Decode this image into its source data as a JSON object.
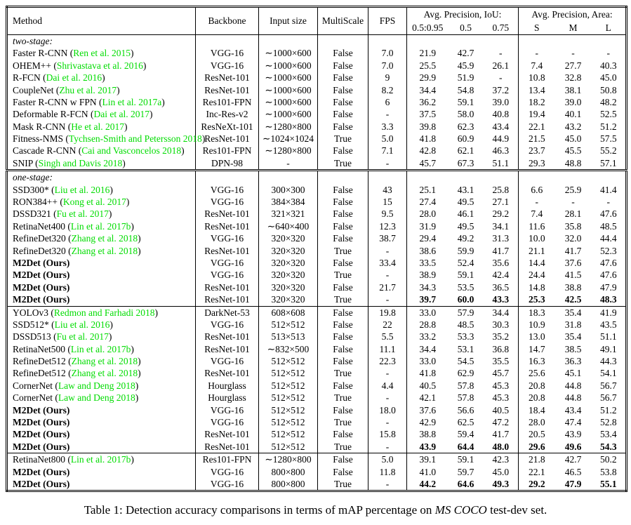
{
  "colors": {
    "citation": "#00DC00",
    "text": "#000000",
    "background": "#ffffff"
  },
  "header": {
    "method": "Method",
    "backbone": "Backbone",
    "input_size": "Input size",
    "multiscale": "MultiScale",
    "fps": "FPS",
    "group_iou": "Avg. Precision, IoU:",
    "group_area": "Avg. Precision, Area:",
    "sub_iou": [
      "0.5:0.95",
      "0.5",
      "0.75"
    ],
    "sub_area": [
      "S",
      "M",
      "L"
    ]
  },
  "table": {
    "rows": [
      {
        "type": "section",
        "label": "two-stage:"
      },
      {
        "type": "data",
        "method": "Faster R-CNN",
        "cite": "Ren et al. 2015",
        "backbone": "VGG-16",
        "input": "∼1000×600",
        "multiscale": "False",
        "fps": "7.0",
        "vals": [
          "21.9",
          "42.7",
          "-",
          "-",
          "-",
          "-"
        ]
      },
      {
        "type": "data",
        "method": "OHEM++",
        "cite": "Shrivastava et al. 2016",
        "backbone": "VGG-16",
        "input": "∼1000×600",
        "multiscale": "False",
        "fps": "7.0",
        "vals": [
          "25.5",
          "45.9",
          "26.1",
          "7.4",
          "27.7",
          "40.3"
        ]
      },
      {
        "type": "data",
        "method": "R-FCN",
        "cite": "Dai et al. 2016",
        "backbone": "ResNet-101",
        "input": "∼1000×600",
        "multiscale": "False",
        "fps": "9",
        "vals": [
          "29.9",
          "51.9",
          "-",
          "10.8",
          "32.8",
          "45.0"
        ]
      },
      {
        "type": "data",
        "method": "CoupleNet",
        "cite": "Zhu et al. 2017",
        "backbone": "ResNet-101",
        "input": "∼1000×600",
        "multiscale": "False",
        "fps": "8.2",
        "vals": [
          "34.4",
          "54.8",
          "37.2",
          "13.4",
          "38.1",
          "50.8"
        ]
      },
      {
        "type": "data",
        "method": "Faster R-CNN w FPN",
        "cite": "Lin et al. 2017a",
        "backbone": "Res101-FPN",
        "input": "∼1000×600",
        "multiscale": "False",
        "fps": "6",
        "vals": [
          "36.2",
          "59.1",
          "39.0",
          "18.2",
          "39.0",
          "48.2"
        ]
      },
      {
        "type": "data",
        "method": "Deformable R-FCN",
        "cite": "Dai et al. 2017",
        "backbone": "Inc-Res-v2",
        "input": "∼1000×600",
        "multiscale": "False",
        "fps": "-",
        "vals": [
          "37.5",
          "58.0",
          "40.8",
          "19.4",
          "40.1",
          "52.5"
        ]
      },
      {
        "type": "data",
        "method": "Mask R-CNN",
        "cite": "He et al. 2017",
        "backbone": "ResNeXt-101",
        "input": "∼1280×800",
        "multiscale": "False",
        "fps": "3.3",
        "vals": [
          "39.8",
          "62.3",
          "43.4",
          "22.1",
          "43.2",
          "51.2"
        ]
      },
      {
        "type": "data",
        "method": "Fitness-NMS",
        "cite": "Tychsen-Smith and Petersson 2018",
        "backbone": "ResNet-101",
        "input": "∼1024×1024",
        "multiscale": "True",
        "fps": "5.0",
        "vals": [
          "41.8",
          "60.9",
          "44.9",
          "21.5",
          "45.0",
          "57.5"
        ]
      },
      {
        "type": "data",
        "method": "Cascade R-CNN",
        "cite": "Cai and Vasconcelos 2018",
        "backbone": "Res101-FPN",
        "input": "∼1280×800",
        "multiscale": "False",
        "fps": "7.1",
        "vals": [
          "42.8",
          "62.1",
          "46.3",
          "23.7",
          "45.5",
          "55.2"
        ]
      },
      {
        "type": "data",
        "method": "SNIP",
        "cite": "Singh and Davis 2018",
        "backbone": "DPN-98",
        "input": "-",
        "multiscale": "True",
        "fps": "-",
        "vals": [
          "45.7",
          "67.3",
          "51.1",
          "29.3",
          "48.8",
          "57.1"
        ]
      },
      {
        "type": "section",
        "label": "one-stage:",
        "sep": "double"
      },
      {
        "type": "data",
        "method": "SSD300*",
        "cite": "Liu et al. 2016",
        "backbone": "VGG-16",
        "input": "300×300",
        "multiscale": "False",
        "fps": "43",
        "vals": [
          "25.1",
          "43.1",
          "25.8",
          "6.6",
          "25.9",
          "41.4"
        ]
      },
      {
        "type": "data",
        "method": "RON384++",
        "cite": "Kong et al. 2017",
        "backbone": "VGG-16",
        "input": "384×384",
        "multiscale": "False",
        "fps": "15",
        "vals": [
          "27.4",
          "49.5",
          "27.1",
          "-",
          "-",
          "-"
        ]
      },
      {
        "type": "data",
        "method": "DSSD321",
        "cite": "Fu et al. 2017",
        "backbone": "ResNet-101",
        "input": "321×321",
        "multiscale": "False",
        "fps": "9.5",
        "vals": [
          "28.0",
          "46.1",
          "29.2",
          "7.4",
          "28.1",
          "47.6"
        ]
      },
      {
        "type": "data",
        "method": "RetinaNet400",
        "cite": "Lin et al. 2017b",
        "backbone": "ResNet-101",
        "input": "∼640×400",
        "multiscale": "False",
        "fps": "12.3",
        "vals": [
          "31.9",
          "49.5",
          "34.1",
          "11.6",
          "35.8",
          "48.5"
        ]
      },
      {
        "type": "data",
        "method": "RefineDet320",
        "cite": "Zhang et al. 2018",
        "backbone": "VGG-16",
        "input": "320×320",
        "multiscale": "False",
        "fps": "38.7",
        "vals": [
          "29.4",
          "49.2",
          "31.3",
          "10.0",
          "32.0",
          "44.4"
        ]
      },
      {
        "type": "data",
        "method": "RefineDet320",
        "cite": "Zhang et al. 2018",
        "backbone": "ResNet-101",
        "input": "320×320",
        "multiscale": "True",
        "fps": "-",
        "vals": [
          "38.6",
          "59.9",
          "41.7",
          "21.1",
          "41.7",
          "52.3"
        ]
      },
      {
        "type": "data",
        "method": "M2Det (Ours)",
        "boldMethod": true,
        "backbone": "VGG-16",
        "input": "320×320",
        "multiscale": "False",
        "fps": "33.4",
        "vals": [
          "33.5",
          "52.4",
          "35.6",
          "14.4",
          "37.6",
          "47.6"
        ]
      },
      {
        "type": "data",
        "method": "M2Det (Ours)",
        "boldMethod": true,
        "backbone": "VGG-16",
        "input": "320×320",
        "multiscale": "True",
        "fps": "-",
        "vals": [
          "38.9",
          "59.1",
          "42.4",
          "24.4",
          "41.5",
          "47.6"
        ]
      },
      {
        "type": "data",
        "method": "M2Det (Ours)",
        "boldMethod": true,
        "backbone": "ResNet-101",
        "input": "320×320",
        "multiscale": "False",
        "fps": "21.7",
        "vals": [
          "34.3",
          "53.5",
          "36.5",
          "14.8",
          "38.8",
          "47.9"
        ]
      },
      {
        "type": "data",
        "method": "M2Det (Ours)",
        "boldMethod": true,
        "boldVals": true,
        "backbone": "ResNet-101",
        "input": "320×320",
        "multiscale": "True",
        "fps": "-",
        "vals": [
          "39.7",
          "60.0",
          "43.3",
          "25.3",
          "42.5",
          "48.3"
        ]
      },
      {
        "type": "data",
        "method": "YOLOv3",
        "cite": "Redmon and Farhadi 2018",
        "backbone": "DarkNet-53",
        "input": "608×608",
        "multiscale": "False",
        "fps": "19.8",
        "vals": [
          "33.0",
          "57.9",
          "34.4",
          "18.3",
          "35.4",
          "41.9"
        ],
        "sep": "single"
      },
      {
        "type": "data",
        "method": "SSD512*",
        "cite": "Liu et al. 2016",
        "backbone": "VGG-16",
        "input": "512×512",
        "multiscale": "False",
        "fps": "22",
        "vals": [
          "28.8",
          "48.5",
          "30.3",
          "10.9",
          "31.8",
          "43.5"
        ]
      },
      {
        "type": "data",
        "method": "DSSD513",
        "cite": "Fu et al. 2017",
        "backbone": "ResNet-101",
        "input": "513×513",
        "multiscale": "False",
        "fps": "5.5",
        "vals": [
          "33.2",
          "53.3",
          "35.2",
          "13.0",
          "35.4",
          "51.1"
        ]
      },
      {
        "type": "data",
        "method": "RetinaNet500",
        "cite": "Lin et al. 2017b",
        "backbone": "ResNet-101",
        "input": "∼832×500",
        "multiscale": "False",
        "fps": "11.1",
        "vals": [
          "34.4",
          "53.1",
          "36.8",
          "14.7",
          "38.5",
          "49.1"
        ]
      },
      {
        "type": "data",
        "method": "RefineDet512",
        "cite": "Zhang et al. 2018",
        "backbone": "VGG-16",
        "input": "512×512",
        "multiscale": "False",
        "fps": "22.3",
        "vals": [
          "33.0",
          "54.5",
          "35.5",
          "16.3",
          "36.3",
          "44.3"
        ]
      },
      {
        "type": "data",
        "method": "RefineDet512",
        "cite": "Zhang et al. 2018",
        "backbone": "ResNet-101",
        "input": "512×512",
        "multiscale": "True",
        "fps": "-",
        "vals": [
          "41.8",
          "62.9",
          "45.7",
          "25.6",
          "45.1",
          "54.1"
        ]
      },
      {
        "type": "data",
        "method": "CornerNet",
        "cite": "Law and Deng 2018",
        "backbone": "Hourglass",
        "input": "512×512",
        "multiscale": "False",
        "fps": "4.4",
        "vals": [
          "40.5",
          "57.8",
          "45.3",
          "20.8",
          "44.8",
          "56.7"
        ]
      },
      {
        "type": "data",
        "method": "CornerNet",
        "cite": "Law and Deng 2018",
        "backbone": "Hourglass",
        "input": "512×512",
        "multiscale": "True",
        "fps": "-",
        "vals": [
          "42.1",
          "57.8",
          "45.3",
          "20.8",
          "44.8",
          "56.7"
        ]
      },
      {
        "type": "data",
        "method": "M2Det (Ours)",
        "boldMethod": true,
        "backbone": "VGG-16",
        "input": "512×512",
        "multiscale": "False",
        "fps": "18.0",
        "vals": [
          "37.6",
          "56.6",
          "40.5",
          "18.4",
          "43.4",
          "51.2"
        ]
      },
      {
        "type": "data",
        "method": "M2Det (Ours)",
        "boldMethod": true,
        "backbone": "VGG-16",
        "input": "512×512",
        "multiscale": "True",
        "fps": "-",
        "vals": [
          "42.9",
          "62.5",
          "47.2",
          "28.0",
          "47.4",
          "52.8"
        ]
      },
      {
        "type": "data",
        "method": "M2Det (Ours)",
        "boldMethod": true,
        "backbone": "ResNet-101",
        "input": "512×512",
        "multiscale": "False",
        "fps": "15.8",
        "vals": [
          "38.8",
          "59.4",
          "41.7",
          "20.5",
          "43.9",
          "53.4"
        ]
      },
      {
        "type": "data",
        "method": "M2Det (Ours)",
        "boldMethod": true,
        "boldVals": true,
        "backbone": "ResNet-101",
        "input": "512×512",
        "multiscale": "True",
        "fps": "-",
        "vals": [
          "43.9",
          "64.4",
          "48.0",
          "29.6",
          "49.6",
          "54.3"
        ]
      },
      {
        "type": "data",
        "method": "RetinaNet800",
        "cite": "Lin et al. 2017b",
        "backbone": "Res101-FPN",
        "input": "∼1280×800",
        "multiscale": "False",
        "fps": "5.0",
        "vals": [
          "39.1",
          "59.1",
          "42.3",
          "21.8",
          "42.7",
          "50.2"
        ],
        "sep": "single"
      },
      {
        "type": "data",
        "method": "M2Det (Ours)",
        "boldMethod": true,
        "backbone": "VGG-16",
        "input": "800×800",
        "multiscale": "False",
        "fps": "11.8",
        "vals": [
          "41.0",
          "59.7",
          "45.0",
          "22.1",
          "46.5",
          "53.8"
        ]
      },
      {
        "type": "data",
        "method": "M2Det (Ours)",
        "boldMethod": true,
        "boldVals": true,
        "backbone": "VGG-16",
        "input": "800×800",
        "multiscale": "True",
        "fps": "-",
        "vals": [
          "44.2",
          "64.6",
          "49.3",
          "29.2",
          "47.9",
          "55.1"
        ]
      }
    ]
  },
  "caption": {
    "prefix": "Table 1: Detection accuracy comparisons in terms of mAP percentage on ",
    "emph": "MS COCO",
    "suffix": " test-dev set."
  }
}
